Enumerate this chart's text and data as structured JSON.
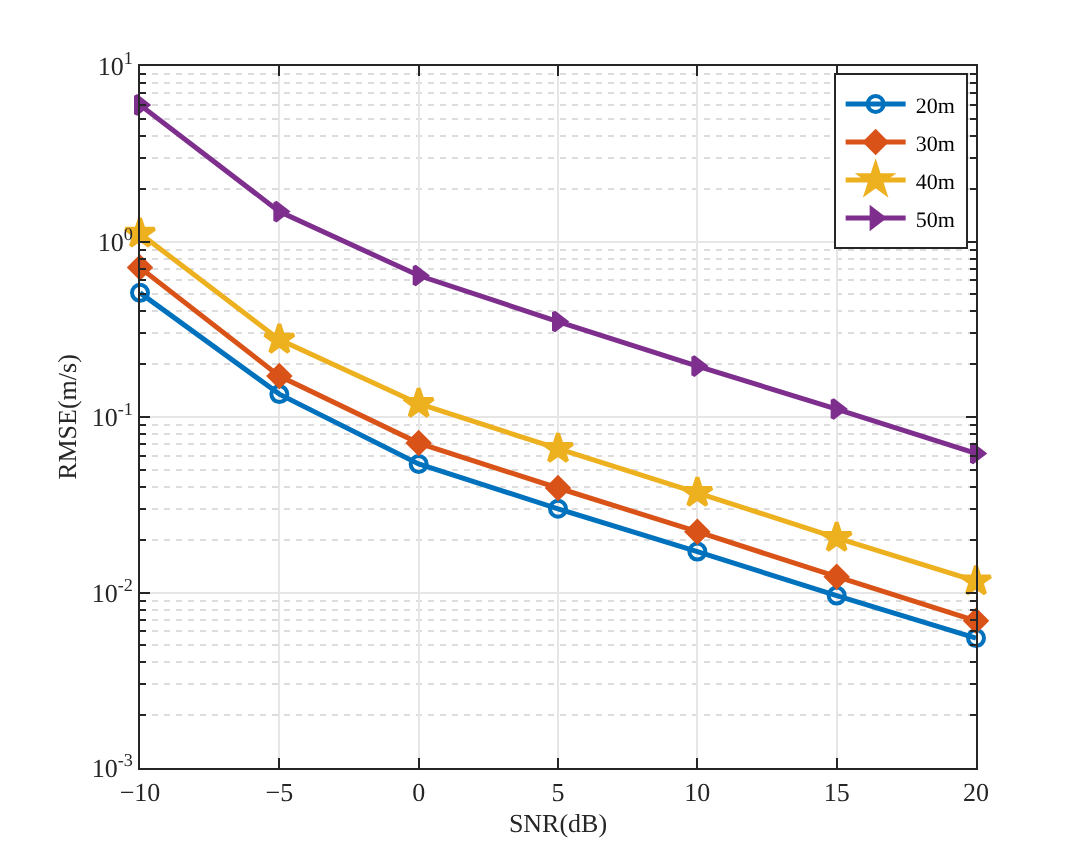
{
  "chart_data": {
    "type": "line",
    "xlabel": "SNR(dB)",
    "ylabel": "RMSE(m/s)",
    "x": [
      -10,
      -5,
      0,
      5,
      10,
      15,
      20
    ],
    "series": [
      {
        "name": "20m",
        "color": "#0072bd",
        "marker": "circle",
        "values": [
          0.51,
          0.135,
          0.054,
          0.03,
          0.0171,
          0.0096,
          0.0055
        ]
      },
      {
        "name": "30m",
        "color": "#d95319",
        "marker": "diamond",
        "values": [
          0.71,
          0.171,
          0.071,
          0.0394,
          0.0222,
          0.0123,
          0.0069
        ]
      },
      {
        "name": "40m",
        "color": "#edb120",
        "marker": "star",
        "values": [
          1.11,
          0.276,
          0.119,
          0.066,
          0.037,
          0.0205,
          0.0116
        ]
      },
      {
        "name": "50m",
        "color": "#7e2f8e",
        "marker": "triangle",
        "values": [
          6.0,
          1.48,
          0.64,
          0.35,
          0.195,
          0.111,
          0.062
        ]
      }
    ],
    "log": "y",
    "xlim": [
      -10,
      20
    ],
    "xticks": [
      -10,
      -5,
      0,
      5,
      10,
      15,
      20
    ],
    "ylim": [
      0.001,
      10
    ],
    "yticks": [
      {
        "value": 0.001,
        "label": "10$^{-3}$"
      },
      {
        "value": 0.01,
        "label": "10$^{-2}$"
      },
      {
        "value": 0.1,
        "label": "10$^{-1}$"
      },
      {
        "value": 1,
        "label": "10$^{0}$"
      },
      {
        "value": 10,
        "label": "10$^{1}$"
      }
    ],
    "grid": true,
    "legend": "top right",
    "line_style": "solid"
  }
}
